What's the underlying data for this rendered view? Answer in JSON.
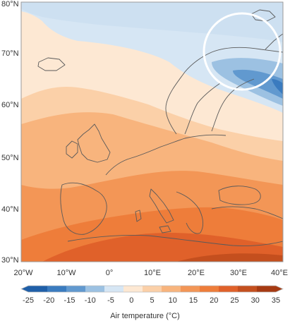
{
  "map": {
    "region": "Europe",
    "lat_labels": [
      "80°N",
      "70°N",
      "60°N",
      "50°N",
      "40°N",
      "30°N"
    ],
    "lon_labels": [
      "20°W",
      "10°W",
      "0°",
      "10°E",
      "20°E",
      "30°E",
      "40°E"
    ]
  },
  "colorbar": {
    "title": "Air temperature (°C)",
    "ticks": [
      "-25",
      "-20",
      "-15",
      "-10",
      "-5",
      "0",
      "5",
      "10",
      "15",
      "20",
      "25",
      "30",
      "35"
    ],
    "colors": [
      "#1f5fa8",
      "#3a7bbf",
      "#6199cf",
      "#9cc1e2",
      "#d6e6f4",
      "#fde8d3",
      "#fbd0a8",
      "#f8b47d",
      "#f39656",
      "#ee7d3a",
      "#e0612a",
      "#c44f1e",
      "#a63a12"
    ]
  },
  "highlight": {
    "shape": "circle",
    "color": "#ffffff"
  }
}
